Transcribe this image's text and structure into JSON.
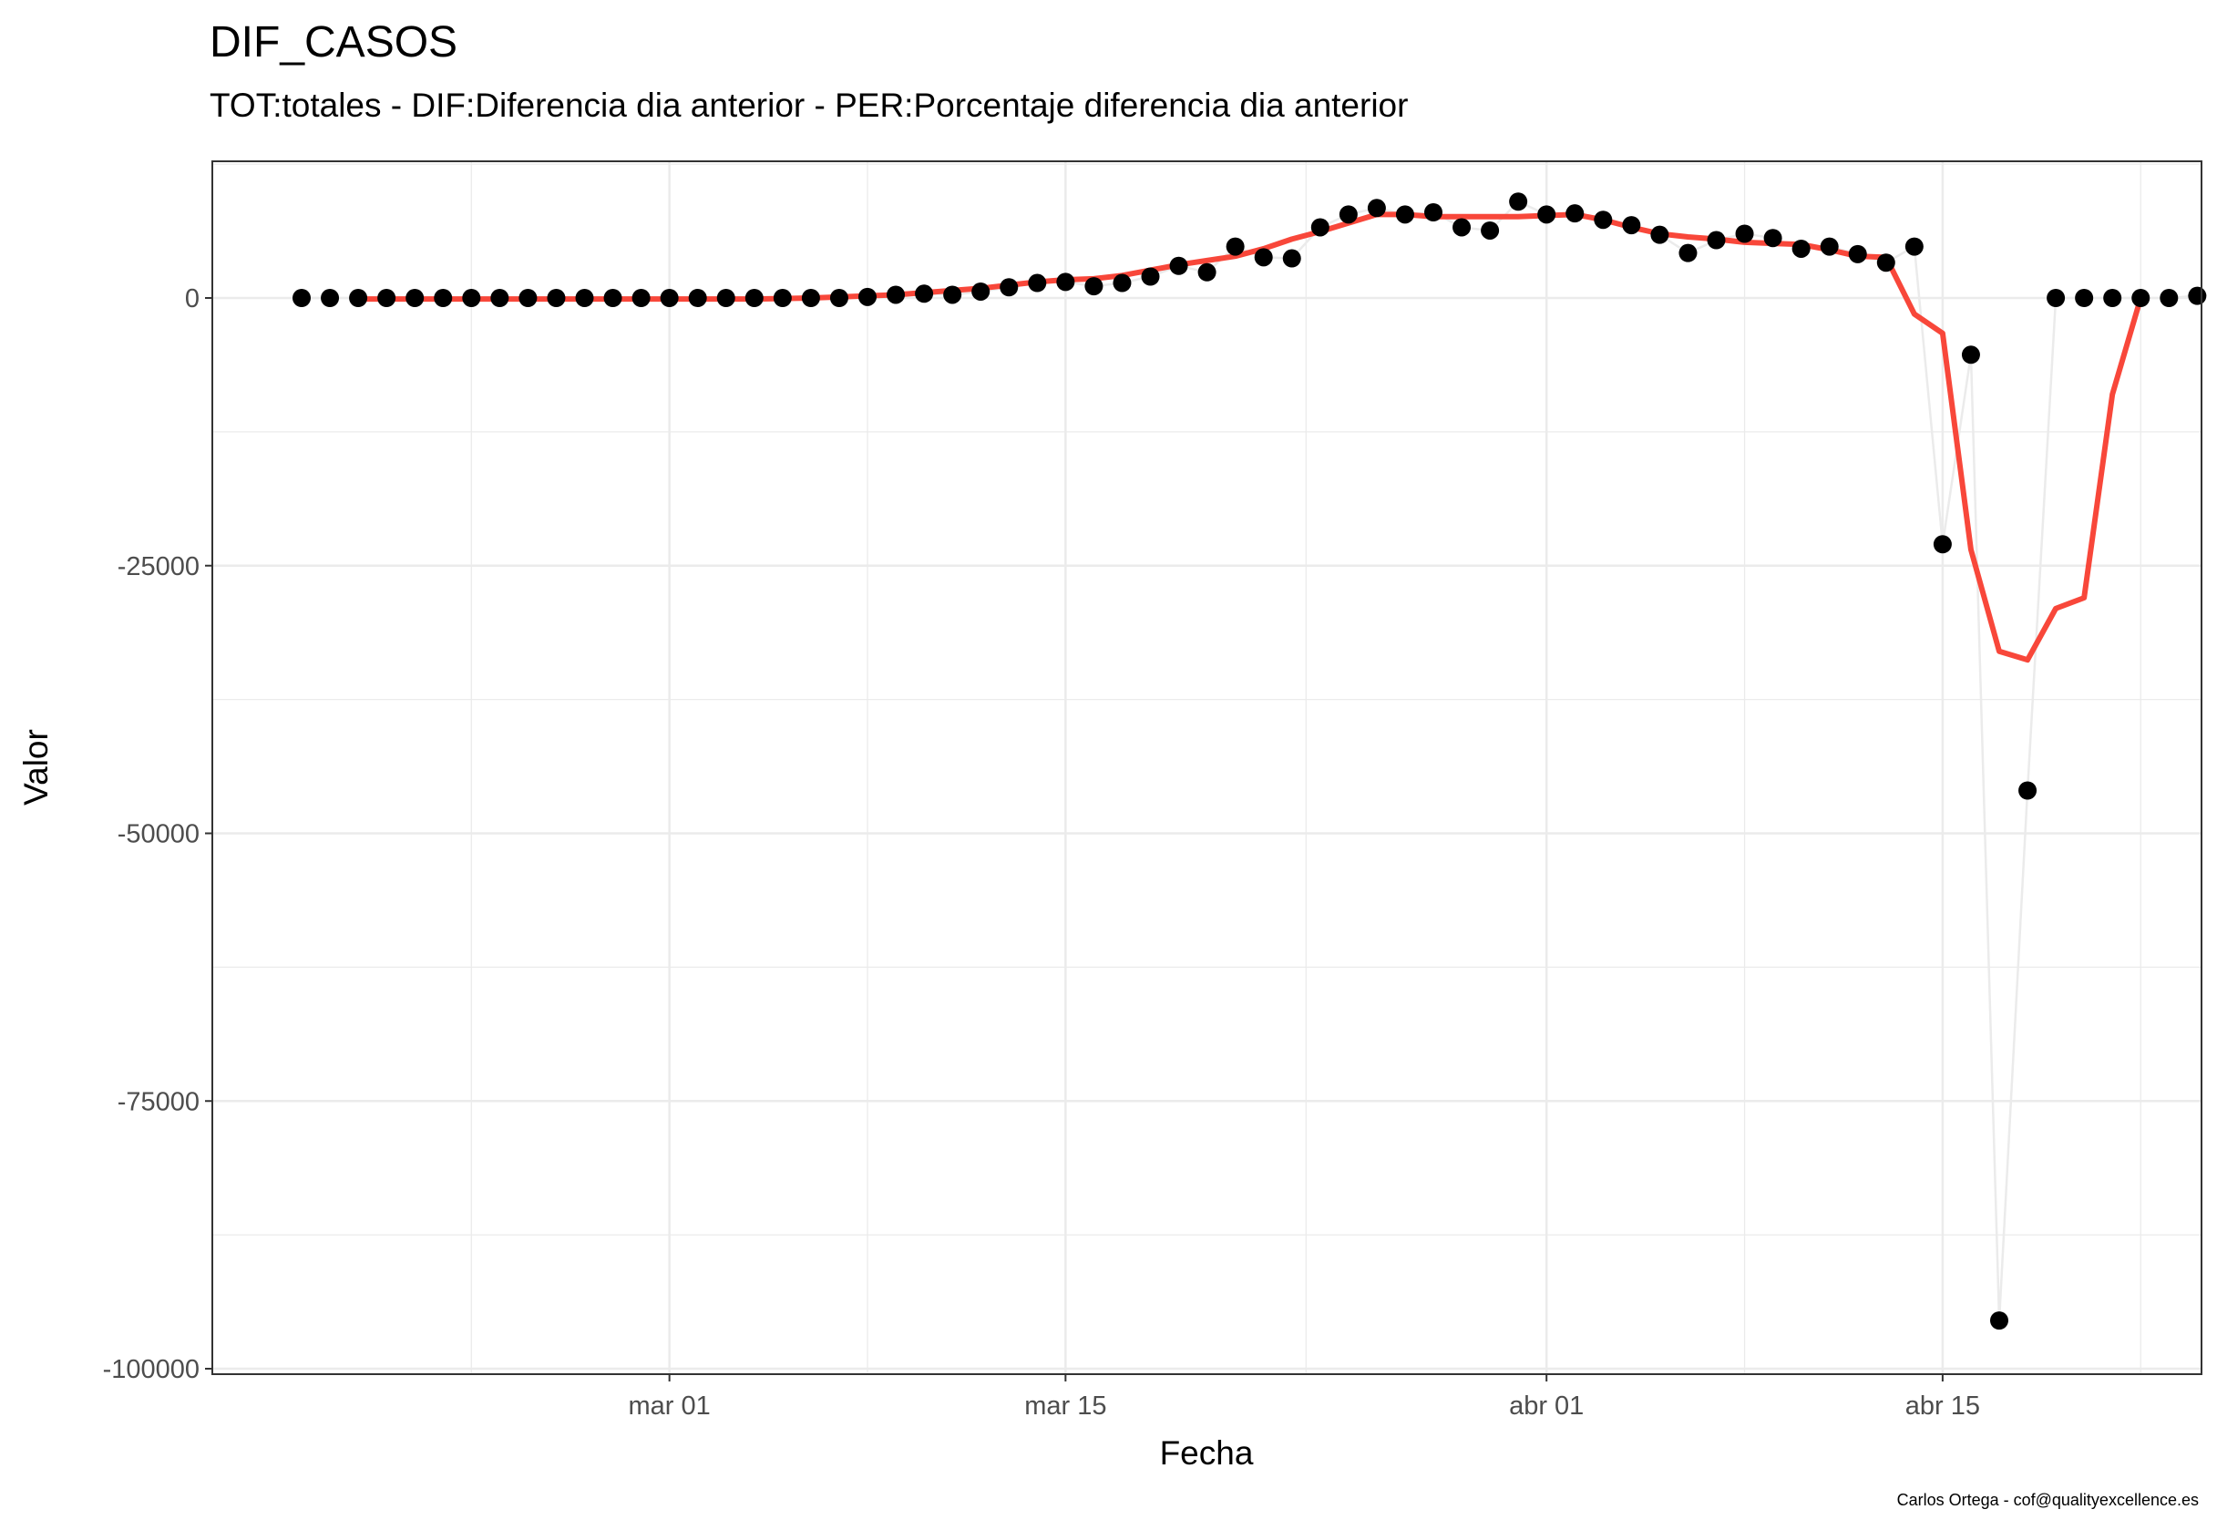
{
  "chart_data": {
    "type": "line",
    "title": "DIF_CASOS",
    "subtitle": "TOT:totales - DIF:Diferencia dia anterior - PER:Porcentaje diferencia dia anterior",
    "xlabel": "Fecha",
    "ylabel": "Valor",
    "caption": "Carlos Ortega - cof@qualityexcellence.es",
    "x_start": "2020-02-17",
    "x_ticks": [
      {
        "label": "mar 01",
        "date": "2020-03-01"
      },
      {
        "label": "mar 15",
        "date": "2020-03-15"
      },
      {
        "label": "abr 01",
        "date": "2020-04-01"
      },
      {
        "label": "abr 15",
        "date": "2020-04-15"
      }
    ],
    "y_ticks": [
      0,
      -25000,
      -50000,
      -75000,
      -100000
    ],
    "y_tick_labels": [
      "0",
      "-25000",
      "-50000",
      "-75000",
      "-100000"
    ],
    "ylim": [
      -100000,
      12500
    ],
    "grid": true,
    "colors": {
      "points": "#000000",
      "raw_line": "#ebebeb",
      "smooth_line": "#f8473a",
      "panel_border": "#333333",
      "grid": "#ebebeb"
    },
    "series": [
      {
        "kind": "points",
        "x": [
          "2020-02-17",
          "2020-02-18",
          "2020-02-19",
          "2020-02-20",
          "2020-02-21",
          "2020-02-22",
          "2020-02-23",
          "2020-02-24",
          "2020-02-25",
          "2020-02-26",
          "2020-02-27",
          "2020-02-28",
          "2020-02-29",
          "2020-03-01",
          "2020-03-02",
          "2020-03-03",
          "2020-03-04",
          "2020-03-05",
          "2020-03-06",
          "2020-03-07",
          "2020-03-08",
          "2020-03-09",
          "2020-03-10",
          "2020-03-11",
          "2020-03-12",
          "2020-03-13",
          "2020-03-14",
          "2020-03-15",
          "2020-03-16",
          "2020-03-17",
          "2020-03-18",
          "2020-03-19",
          "2020-03-20",
          "2020-03-21",
          "2020-03-22",
          "2020-03-23",
          "2020-03-24",
          "2020-03-25",
          "2020-03-26",
          "2020-03-27",
          "2020-03-28",
          "2020-03-29",
          "2020-03-30",
          "2020-03-31",
          "2020-04-01",
          "2020-04-02",
          "2020-04-03",
          "2020-04-04",
          "2020-04-05",
          "2020-04-06",
          "2020-04-07",
          "2020-04-08",
          "2020-04-09",
          "2020-04-10",
          "2020-04-11",
          "2020-04-12",
          "2020-04-13",
          "2020-04-14",
          "2020-04-15",
          "2020-04-16",
          "2020-04-17",
          "2020-04-18",
          "2020-04-19",
          "2020-04-20",
          "2020-04-21",
          "2020-04-22",
          "2020-04-23",
          "2020-04-24"
        ],
        "y": [
          0,
          0,
          0,
          0,
          0,
          0,
          0,
          0,
          0,
          0,
          0,
          0,
          0,
          0,
          0,
          0,
          0,
          0,
          0,
          0,
          100,
          300,
          400,
          300,
          600,
          1000,
          1400,
          1500,
          1100,
          1400,
          2000,
          3000,
          2400,
          4800,
          3800,
          3700,
          6600,
          7800,
          8400,
          7800,
          8000,
          6600,
          6300,
          9000,
          7800,
          7900,
          7300,
          6800,
          5900,
          4200,
          5400,
          6000,
          5600,
          4600,
          4800,
          4100,
          3300,
          4800,
          -23000,
          -5300,
          -95500,
          -46000,
          0,
          0,
          0,
          0,
          0,
          200
        ]
      },
      {
        "kind": "smooth",
        "x": [
          "2020-02-19",
          "2020-02-20",
          "2020-02-21",
          "2020-02-22",
          "2020-02-23",
          "2020-02-24",
          "2020-02-25",
          "2020-02-26",
          "2020-02-27",
          "2020-02-28",
          "2020-02-29",
          "2020-03-01",
          "2020-03-02",
          "2020-03-03",
          "2020-03-04",
          "2020-03-05",
          "2020-03-06",
          "2020-03-07",
          "2020-03-08",
          "2020-03-09",
          "2020-03-10",
          "2020-03-11",
          "2020-03-12",
          "2020-03-13",
          "2020-03-14",
          "2020-03-15",
          "2020-03-16",
          "2020-03-17",
          "2020-03-18",
          "2020-03-19",
          "2020-03-20",
          "2020-03-21",
          "2020-03-22",
          "2020-03-23",
          "2020-03-24",
          "2020-03-25",
          "2020-03-26",
          "2020-03-27",
          "2020-03-28",
          "2020-03-29",
          "2020-03-30",
          "2020-03-31",
          "2020-04-01",
          "2020-04-02",
          "2020-04-03",
          "2020-04-04",
          "2020-04-05",
          "2020-04-06",
          "2020-04-07",
          "2020-04-08",
          "2020-04-09",
          "2020-04-10",
          "2020-04-11",
          "2020-04-12",
          "2020-04-13",
          "2020-04-14",
          "2020-04-15",
          "2020-04-16",
          "2020-04-17",
          "2020-04-18",
          "2020-04-19",
          "2020-04-20",
          "2020-04-21",
          "2020-04-22"
        ],
        "y": [
          -100,
          -100,
          -100,
          -100,
          -100,
          -100,
          -100,
          -100,
          -100,
          -100,
          -100,
          -100,
          -100,
          -100,
          -100,
          -50,
          0,
          100,
          200,
          300,
          500,
          700,
          900,
          1200,
          1500,
          1700,
          1800,
          2100,
          2600,
          3100,
          3500,
          3900,
          4600,
          5500,
          6200,
          7000,
          7800,
          7800,
          7600,
          7600,
          7600,
          7600,
          7700,
          7800,
          7300,
          6600,
          6000,
          5700,
          5500,
          5200,
          5100,
          5000,
          4500,
          3900,
          3800,
          -1500,
          -3300,
          -23500,
          -33000,
          -33800,
          -29000,
          -28000,
          -9000,
          0
        ]
      }
    ]
  }
}
